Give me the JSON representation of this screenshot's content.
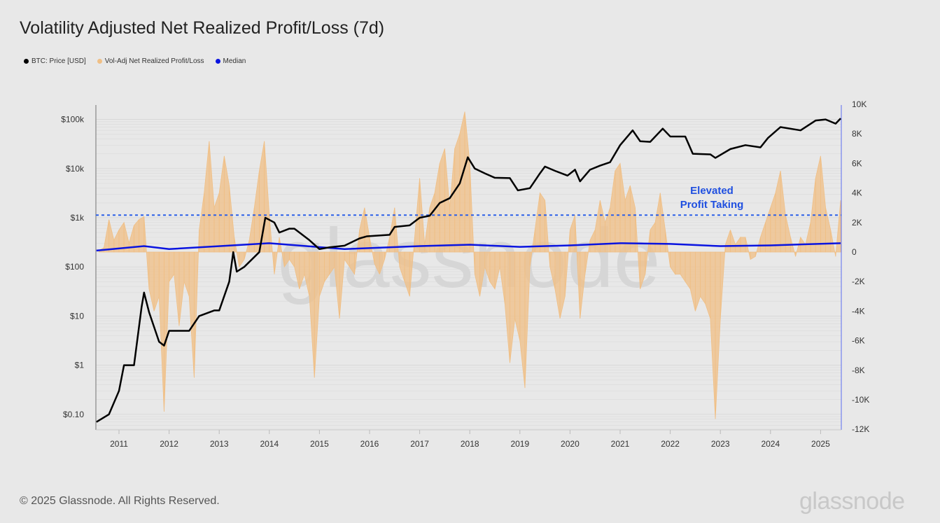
{
  "title": "Volatility Adjusted Net Realized Profit/Loss (7d)",
  "footer": {
    "copyright": "© 2025 Glassnode. All Rights Reserved.",
    "logo": "glassnode",
    "watermark": "glassnode"
  },
  "colors": {
    "price": "#000000",
    "nrpl": "#f0bf85",
    "median": "#0a14e0",
    "threshold": "#2b5fe8",
    "annotation": "#1f4fe0"
  },
  "chart_data": {
    "type": "line",
    "title": "Volatility Adjusted Net Realized Profit/Loss (7d)",
    "legend": {
      "position": "top-left",
      "items": [
        "BTC: Price [USD]",
        "Vol-Adj Net Realized Profit/Loss",
        "Median"
      ]
    },
    "x_ticks": [
      "2011",
      "2012",
      "2013",
      "2014",
      "2015",
      "2016",
      "2017",
      "2018",
      "2019",
      "2020",
      "2021",
      "2022",
      "2023",
      "2024",
      "2025"
    ],
    "y_left": {
      "scale": "log",
      "range": [
        0.06,
        200000
      ],
      "ticks": [
        "$100k",
        "$10k",
        "$1k",
        "$100",
        "$10",
        "$1",
        "$0.10"
      ],
      "tick_values": [
        100000,
        10000,
        1000,
        100,
        10,
        1,
        0.1
      ]
    },
    "y_right": {
      "scale": "linear",
      "range": [
        -12000,
        10000
      ],
      "ticks": [
        "10K",
        "8K",
        "6K",
        "4K",
        "2K",
        "0",
        "-2K",
        "-4K",
        "-6K",
        "-8K",
        "-10K",
        "-12K"
      ],
      "tick_values": [
        10000,
        8000,
        6000,
        4000,
        2000,
        0,
        -2000,
        -4000,
        -6000,
        -8000,
        -10000,
        -12000
      ]
    },
    "threshold": {
      "value": 2500,
      "style": "dashed"
    },
    "annotation": {
      "line1": "Elevated",
      "line2": "Profit Taking"
    },
    "series": [
      {
        "name": "BTC: Price [USD]",
        "axis": "left",
        "x": [
          2010.55,
          2010.8,
          2011.0,
          2011.1,
          2011.3,
          2011.45,
          2011.5,
          2011.6,
          2011.8,
          2011.9,
          2012.0,
          2012.4,
          2012.6,
          2012.9,
          2013.0,
          2013.2,
          2013.28,
          2013.35,
          2013.5,
          2013.8,
          2013.92,
          2014.1,
          2014.2,
          2014.4,
          2014.5,
          2014.8,
          2015.0,
          2015.2,
          2015.5,
          2015.8,
          2015.95,
          2016.4,
          2016.5,
          2016.8,
          2017.0,
          2017.2,
          2017.4,
          2017.6,
          2017.8,
          2017.96,
          2018.1,
          2018.3,
          2018.5,
          2018.8,
          2018.96,
          2019.2,
          2019.4,
          2019.5,
          2019.7,
          2019.95,
          2020.1,
          2020.2,
          2020.4,
          2020.6,
          2020.8,
          2021.0,
          2021.25,
          2021.4,
          2021.6,
          2021.85,
          2022.0,
          2022.3,
          2022.45,
          2022.8,
          2022.9,
          2023.2,
          2023.5,
          2023.8,
          2023.95,
          2024.2,
          2024.6,
          2024.9,
          2025.1,
          2025.3,
          2025.4
        ],
        "values": [
          0.07,
          0.1,
          0.3,
          1,
          1,
          15,
          30,
          12,
          3,
          2.5,
          5,
          5,
          10,
          13,
          13,
          50,
          200,
          80,
          100,
          200,
          1000,
          800,
          500,
          600,
          600,
          350,
          230,
          250,
          270,
          380,
          420,
          450,
          650,
          700,
          1000,
          1100,
          2000,
          2500,
          5000,
          17000,
          10000,
          8000,
          6500,
          6400,
          3600,
          4000,
          8000,
          11000,
          9000,
          7200,
          9500,
          5500,
          9500,
          11500,
          13500,
          30000,
          60000,
          36000,
          35000,
          65000,
          45000,
          45000,
          20000,
          19500,
          16500,
          25000,
          30000,
          27000,
          42000,
          70000,
          60000,
          95000,
          100000,
          82000,
          105000
        ]
      },
      {
        "name": "Vol-Adj Net Realized Profit/Loss",
        "axis": "right",
        "unit": "K",
        "x0": 2010.6,
        "dx": 0.1,
        "values": [
          0.1,
          0.3,
          2.2,
          0.8,
          1.5,
          2.0,
          0.6,
          1.8,
          2.2,
          2.4,
          -2.5,
          -4,
          -3,
          -10.8,
          -2,
          -1.5,
          -5,
          -2,
          -3,
          -8.5,
          1.5,
          4,
          7.5,
          3,
          4,
          6.5,
          4.5,
          1,
          -1,
          -0.5,
          0.8,
          3,
          5.5,
          7.5,
          2.5,
          -1.5,
          1,
          -1,
          -0.5,
          -1,
          -2.5,
          -1.5,
          -3,
          -8.5,
          -3,
          -2,
          -1.5,
          -1,
          -4.5,
          -0.5,
          -1,
          -1.5,
          1.5,
          3,
          1,
          -0.8,
          -1.5,
          -0.5,
          1,
          3,
          -1,
          -2,
          -3,
          1,
          5,
          0.5,
          3,
          4,
          6,
          7,
          3,
          7,
          8,
          9.5,
          6,
          -1.5,
          -3,
          -1,
          -2,
          -2.5,
          -1,
          -3.5,
          -7.5,
          -4.5,
          -6,
          -9.2,
          -1,
          1.5,
          4,
          3.5,
          -1,
          -2.5,
          -4.5,
          -3,
          1.5,
          2.5,
          -4.5,
          -1.5,
          0.8,
          1.5,
          3.5,
          2,
          3,
          5.5,
          6,
          3.5,
          4.5,
          3,
          -2.5,
          -1.5,
          1.5,
          2,
          4,
          1.5,
          -1,
          -1.5,
          -1.5,
          -2,
          -2.5,
          -4,
          -3,
          -3.5,
          -4.5,
          -11.3,
          -4.5,
          0.5,
          1.5,
          0.5,
          1,
          1,
          -0.5,
          -0.3,
          1,
          2,
          3,
          4,
          5.5,
          2.5,
          1,
          -0.3,
          1,
          0.5,
          2,
          5,
          6.5,
          3,
          1.5,
          -0.3,
          3.5
        ]
      },
      {
        "name": "Median",
        "axis": "right",
        "unit": "K",
        "x": [
          2010.55,
          2011.5,
          2012.0,
          2013.5,
          2014.0,
          2015.5,
          2017.0,
          2018.0,
          2019.0,
          2020.0,
          2021.0,
          2022.0,
          2023.0,
          2024.0,
          2025.4
        ],
        "values": [
          0.1,
          0.4,
          0.2,
          0.5,
          0.6,
          0.2,
          0.4,
          0.5,
          0.35,
          0.45,
          0.6,
          0.55,
          0.4,
          0.45,
          0.6
        ]
      }
    ]
  }
}
